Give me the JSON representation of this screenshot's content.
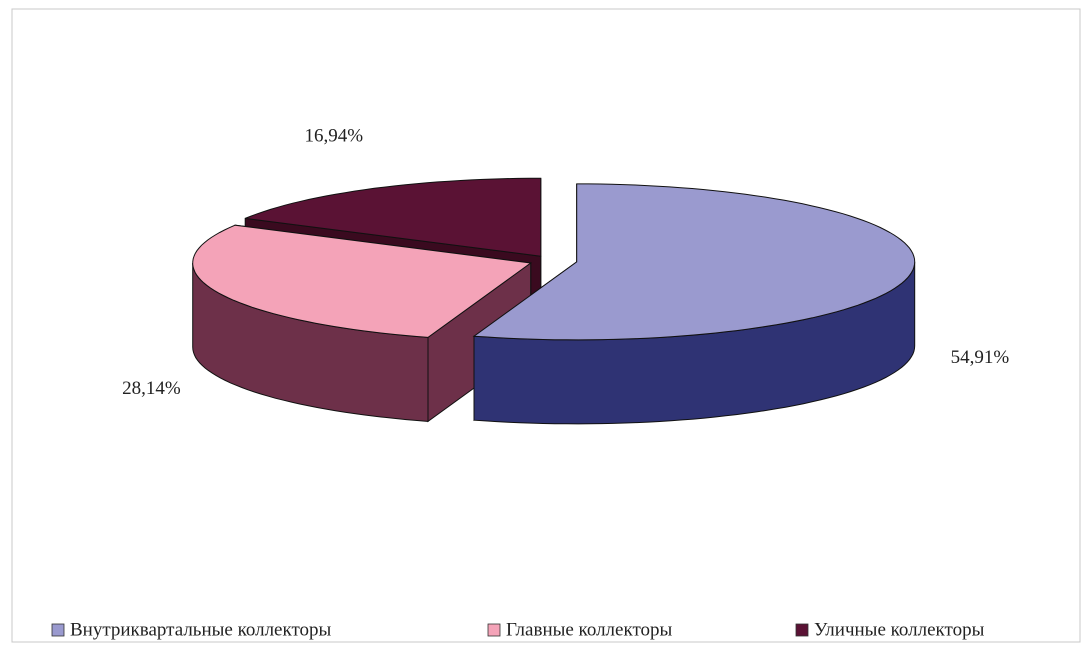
{
  "chart_data": {
    "type": "pie3d",
    "categories": [
      "Внутриквартальные коллекторы",
      "Главные коллекторы",
      "Уличные коллекторы"
    ],
    "values": [
      54.91,
      28.14,
      16.94
    ],
    "value_labels": [
      "54,91%",
      "28,14%",
      "16,94%"
    ],
    "colors": [
      "#9a9acf",
      "#f4a3b8",
      "#5a1234"
    ],
    "side_colors": [
      "#2f3374",
      "#6d3049",
      "#3a0a1f"
    ],
    "legend": "bottom"
  }
}
